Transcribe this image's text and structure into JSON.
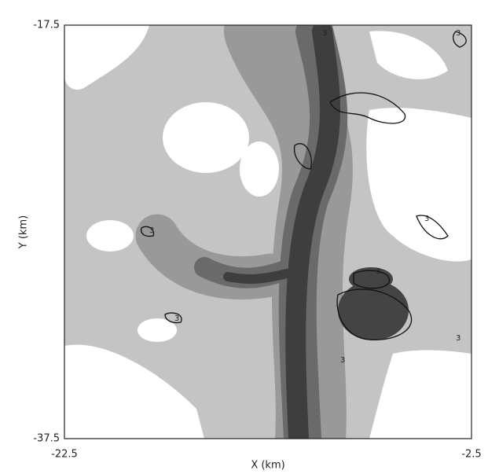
{
  "chart_data": {
    "type": "contour",
    "x_label": "X (km)",
    "y_label": "Y (km)",
    "xlim": [
      -22.5,
      -2.5
    ],
    "ylim": [
      -37.5,
      -17.5
    ],
    "xticks": [
      -22.5,
      -2.5
    ],
    "yticks": [
      -37.5,
      -17.5
    ],
    "contour_level": 3
  }
}
